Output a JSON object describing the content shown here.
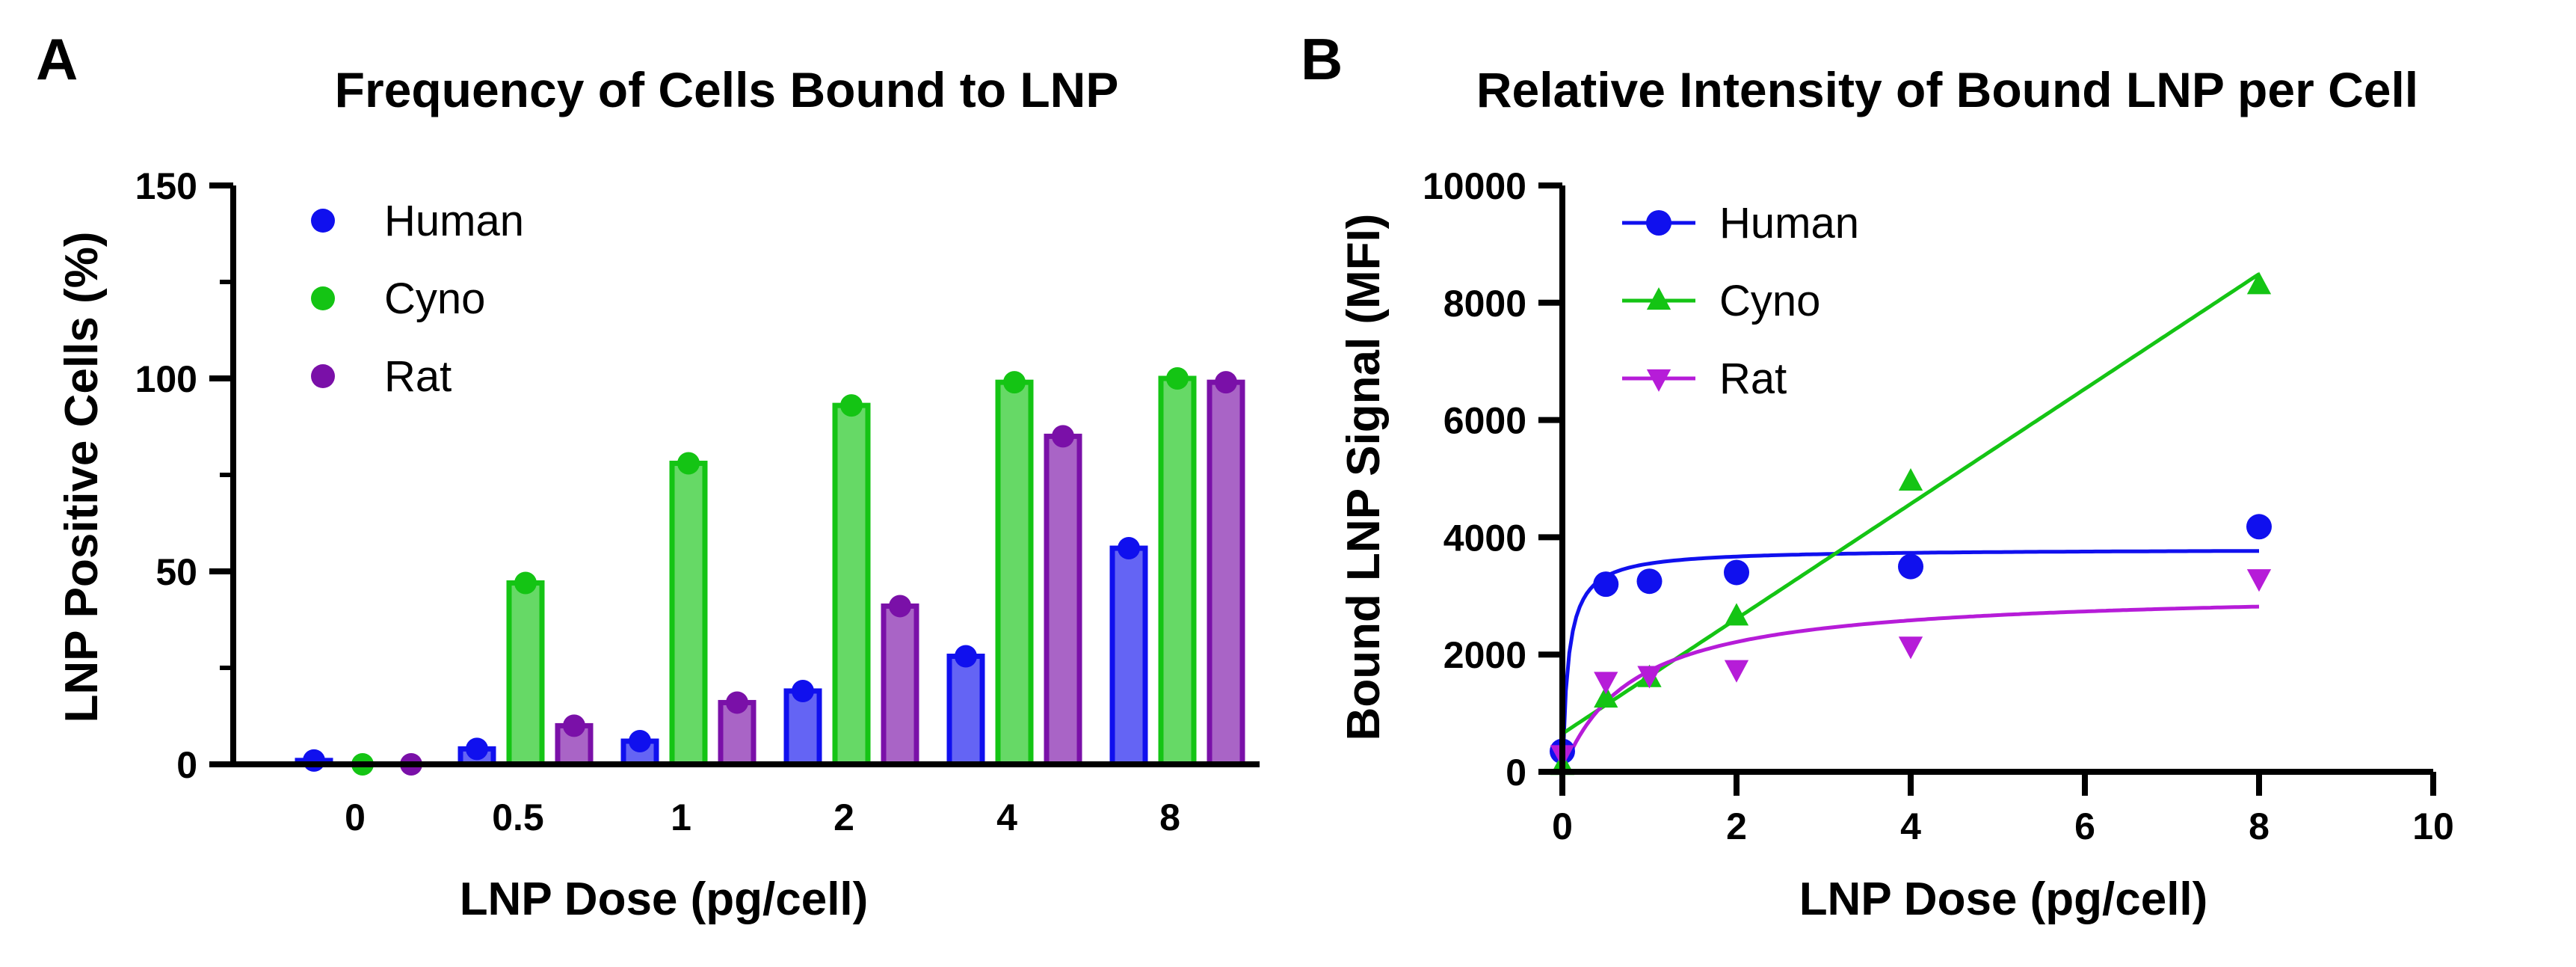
{
  "colors": {
    "human": "#1010ee",
    "cyno": "#14c414",
    "rat": "#7a10a8",
    "rat_b": "#b61cd8"
  },
  "chart_data": [
    {
      "panel": "A",
      "type": "bar",
      "title": "Frequency of Cells Bound to LNP",
      "xlabel": "LNP Dose (pg/cell)",
      "ylabel": "LNP Positive Cells (%)",
      "ylim": [
        0,
        150
      ],
      "yticks": [
        "0",
        "50",
        "100",
        "150"
      ],
      "categories": [
        "0",
        "0.5",
        "1",
        "2",
        "4",
        "8"
      ],
      "legend_position": "top-left",
      "series": [
        {
          "name": "Human",
          "color_key": "human",
          "marker": "circle",
          "values": [
            1,
            4,
            6,
            19,
            28,
            56
          ]
        },
        {
          "name": "Cyno",
          "color_key": "cyno",
          "marker": "circle",
          "values": [
            0,
            47,
            78,
            93,
            99,
            100
          ]
        },
        {
          "name": "Rat",
          "color_key": "rat",
          "marker": "circle",
          "values": [
            0,
            10,
            16,
            41,
            85,
            99
          ]
        }
      ]
    },
    {
      "panel": "B",
      "type": "scatter",
      "title": "Relative Intensity of Bound LNP per Cell",
      "xlabel": "LNP Dose (pg/cell)",
      "ylabel": "Bound LNP Signal (MFI)",
      "xlim": [
        0,
        10
      ],
      "ylim": [
        0,
        10000
      ],
      "xticks": [
        "0",
        "2",
        "4",
        "6",
        "8",
        "10"
      ],
      "yticks": [
        "0",
        "2000",
        "4000",
        "6000",
        "8000",
        "10000"
      ],
      "legend_position": "top-left",
      "series": [
        {
          "name": "Human",
          "color_key": "human",
          "marker": "circle",
          "x": [
            0,
            0.5,
            1,
            2,
            4,
            8
          ],
          "y": [
            350,
            3200,
            3250,
            3400,
            3500,
            4180
          ],
          "fit": "saturation",
          "fit_params": {
            "bmax": 3800,
            "kd": 0.07
          }
        },
        {
          "name": "Cyno",
          "color_key": "cyno",
          "marker": "triangle-up",
          "x": [
            0,
            0.5,
            1,
            2,
            4,
            8
          ],
          "y": [
            100,
            1250,
            1600,
            2650,
            4950,
            8300
          ],
          "fit": "linear",
          "fit_params": {
            "slope": 980,
            "intercept": 650
          }
        },
        {
          "name": "Rat",
          "color_key": "rat_b",
          "marker": "triangle-down",
          "x": [
            0,
            0.5,
            1,
            2,
            4,
            8
          ],
          "y": [
            300,
            1550,
            1650,
            1750,
            2150,
            3300
          ],
          "fit": "saturation",
          "fit_params": {
            "bmax": 3100,
            "kd": 0.8
          }
        }
      ]
    }
  ]
}
